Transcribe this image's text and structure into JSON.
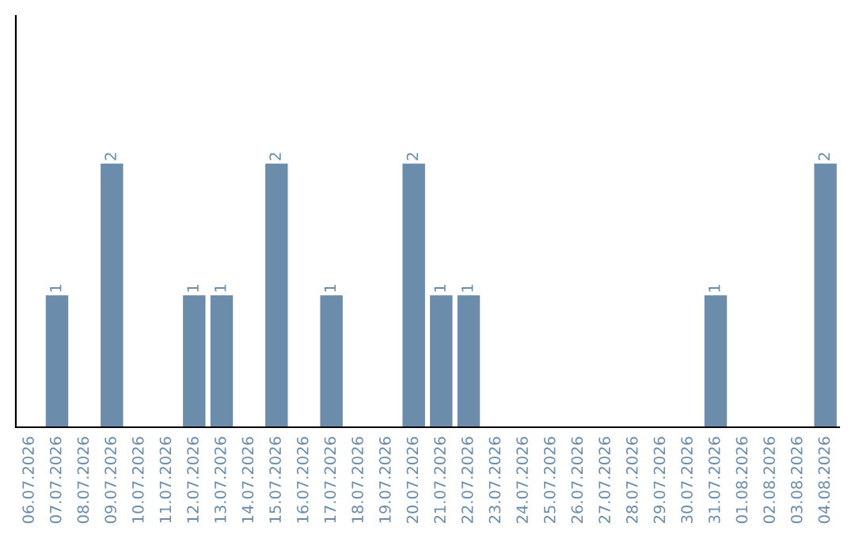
{
  "chart_data": {
    "type": "bar",
    "categories": [
      "06.07.2026",
      "07.07.2026",
      "08.07.2026",
      "09.07.2026",
      "10.07.2026",
      "11.07.2026",
      "12.07.2026",
      "13.07.2026",
      "14.07.2026",
      "15.07.2026",
      "16.07.2026",
      "17.07.2026",
      "18.07.2026",
      "19.07.2026",
      "20.07.2026",
      "21.07.2026",
      "22.07.2026",
      "23.07.2026",
      "24.07.2026",
      "25.07.2026",
      "26.07.2026",
      "27.07.2026",
      "28.07.2026",
      "29.07.2026",
      "30.07.2026",
      "31.07.2026",
      "01.08.2026",
      "02.08.2026",
      "03.08.2026",
      "04.08.2026"
    ],
    "values": [
      0,
      1,
      0,
      2,
      0,
      0,
      1,
      1,
      0,
      2,
      0,
      1,
      0,
      0,
      2,
      1,
      1,
      0,
      0,
      0,
      0,
      0,
      0,
      0,
      0,
      1,
      0,
      0,
      0,
      2
    ],
    "value_labels": [
      null,
      "1",
      null,
      "2",
      null,
      null,
      "1",
      "1",
      null,
      "2",
      null,
      "1",
      null,
      null,
      "2",
      "1",
      "1",
      null,
      null,
      null,
      null,
      null,
      null,
      null,
      null,
      "1",
      null,
      null,
      null,
      "2"
    ],
    "color": "#6b8caa",
    "tick_labels": "x",
    "grid": false
  }
}
